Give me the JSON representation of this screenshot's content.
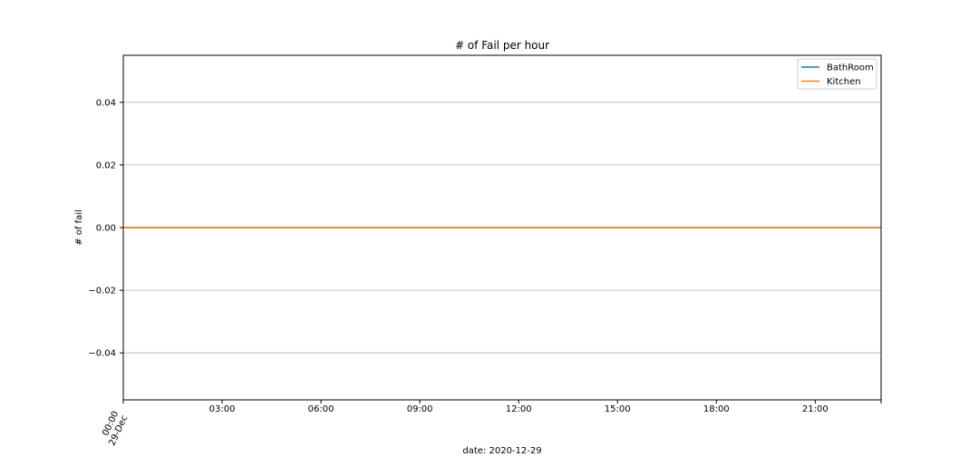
{
  "chart_data": {
    "type": "line",
    "title": "# of Fail per hour",
    "xlabel": "date: 2020-12-29",
    "ylabel": "# of fail",
    "x_tick_labels": [
      {
        "line1": "00:00",
        "line2": "29-Dec",
        "hour": 0
      },
      {
        "line1": "03:00",
        "line2": "",
        "hour": 3
      },
      {
        "line1": "06:00",
        "line2": "",
        "hour": 6
      },
      {
        "line1": "09:00",
        "line2": "",
        "hour": 9
      },
      {
        "line1": "12:00",
        "line2": "",
        "hour": 12
      },
      {
        "line1": "15:00",
        "line2": "",
        "hour": 15
      },
      {
        "line1": "18:00",
        "line2": "",
        "hour": 18
      },
      {
        "line1": "21:00",
        "line2": "",
        "hour": 21
      }
    ],
    "y_ticks": [
      {
        "value": 0.04,
        "label": "0.04"
      },
      {
        "value": 0.02,
        "label": "0.02"
      },
      {
        "value": 0.0,
        "label": "0.00"
      },
      {
        "value": -0.02,
        "label": "−0.02"
      },
      {
        "value": -0.04,
        "label": "−0.04"
      }
    ],
    "xlim": [
      0,
      23
    ],
    "ylim": [
      -0.055,
      0.055
    ],
    "grid": "y-axis",
    "legend_position": "top-right",
    "series": [
      {
        "name": "BathRoom",
        "color": "#1f77b4",
        "x": [
          0,
          1,
          2,
          3,
          4,
          5,
          6,
          7,
          8,
          9,
          10,
          11,
          12,
          13,
          14,
          15,
          16,
          17,
          18,
          19,
          20,
          21,
          22,
          23
        ],
        "values": [
          0,
          0,
          0,
          0,
          0,
          0,
          0,
          0,
          0,
          0,
          0,
          0,
          0,
          0,
          0,
          0,
          0,
          0,
          0,
          0,
          0,
          0,
          0,
          0
        ]
      },
      {
        "name": "Kitchen",
        "color": "#ff7f0e",
        "x": [
          0,
          1,
          2,
          3,
          4,
          5,
          6,
          7,
          8,
          9,
          10,
          11,
          12,
          13,
          14,
          15,
          16,
          17,
          18,
          19,
          20,
          21,
          22,
          23
        ],
        "values": [
          0,
          0,
          0,
          0,
          0,
          0,
          0,
          0,
          0,
          0,
          0,
          0,
          0,
          0,
          0,
          0,
          0,
          0,
          0,
          0,
          0,
          0,
          0,
          0
        ]
      }
    ]
  }
}
